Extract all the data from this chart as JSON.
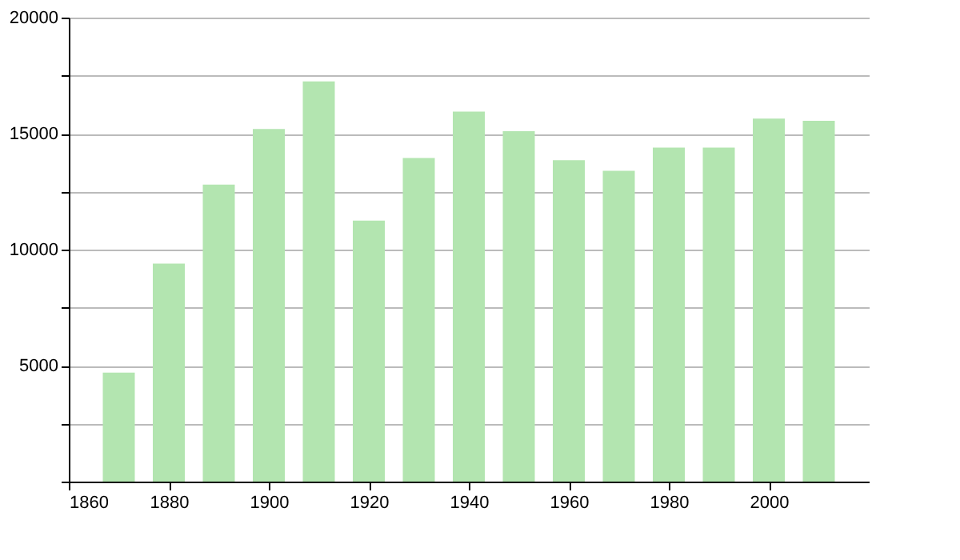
{
  "chart_data": {
    "type": "bar",
    "x": [
      1870,
      1880,
      1890,
      1900,
      1910,
      1920,
      1930,
      1940,
      1950,
      1960,
      1970,
      1980,
      1990,
      2000,
      2010
    ],
    "values": [
      4700,
      9400,
      12800,
      15200,
      17250,
      11250,
      13950,
      15950,
      15100,
      13850,
      13400,
      14400,
      14400,
      15650,
      15550
    ],
    "color": "#b3e5b0",
    "xlim": [
      1860,
      2020
    ],
    "xticks": [
      1860,
      1880,
      1900,
      1920,
      1940,
      1960,
      1980,
      2000
    ],
    "ylim": [
      0,
      20000
    ],
    "yticks": [
      {
        "value": 0,
        "label": null
      },
      {
        "value": 2500,
        "label": null
      },
      5000,
      {
        "value": 7500,
        "label": null
      },
      10000,
      {
        "value": 12500,
        "label": null
      },
      15000,
      {
        "value": 17500,
        "label": null
      },
      20000
    ],
    "grid": "y"
  }
}
